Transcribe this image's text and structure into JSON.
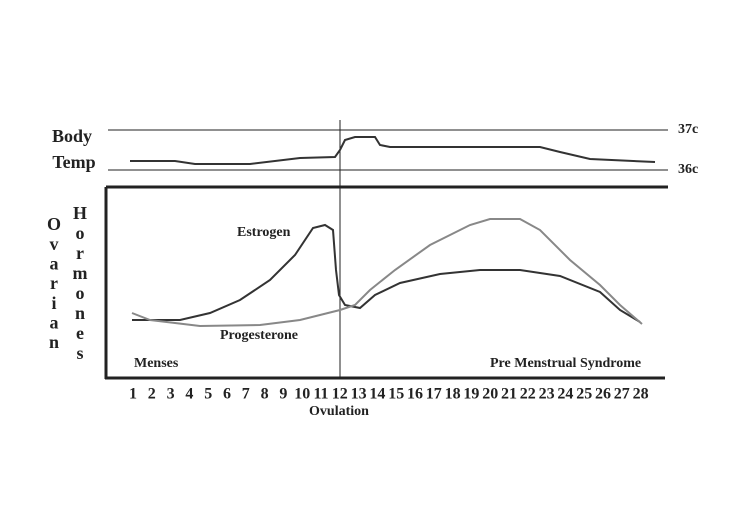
{
  "labels": {
    "body": "Body",
    "temp": "Temp",
    "temp_high": "37c",
    "temp_low": "36c",
    "ovarian": [
      "O",
      "v",
      "a",
      "r",
      "i",
      "a",
      "n"
    ],
    "hormones": [
      "H",
      "o",
      "r",
      "m",
      "o",
      "n",
      "e",
      "s"
    ],
    "estrogen": "Estrogen",
    "progesterone": "Progesterone",
    "menses": "Menses",
    "pms": "Pre Menstrual Syndrome",
    "ovulation": "Ovulation"
  },
  "days": [
    "1",
    "2",
    "3",
    "4",
    "5",
    "6",
    "7",
    "8",
    "9",
    "10",
    "11",
    "12",
    "13",
    "14",
    "15",
    "16",
    "17",
    "18",
    "19",
    "20",
    "21",
    "22",
    "23",
    "24",
    "25",
    "26",
    "27",
    "28"
  ]
}
